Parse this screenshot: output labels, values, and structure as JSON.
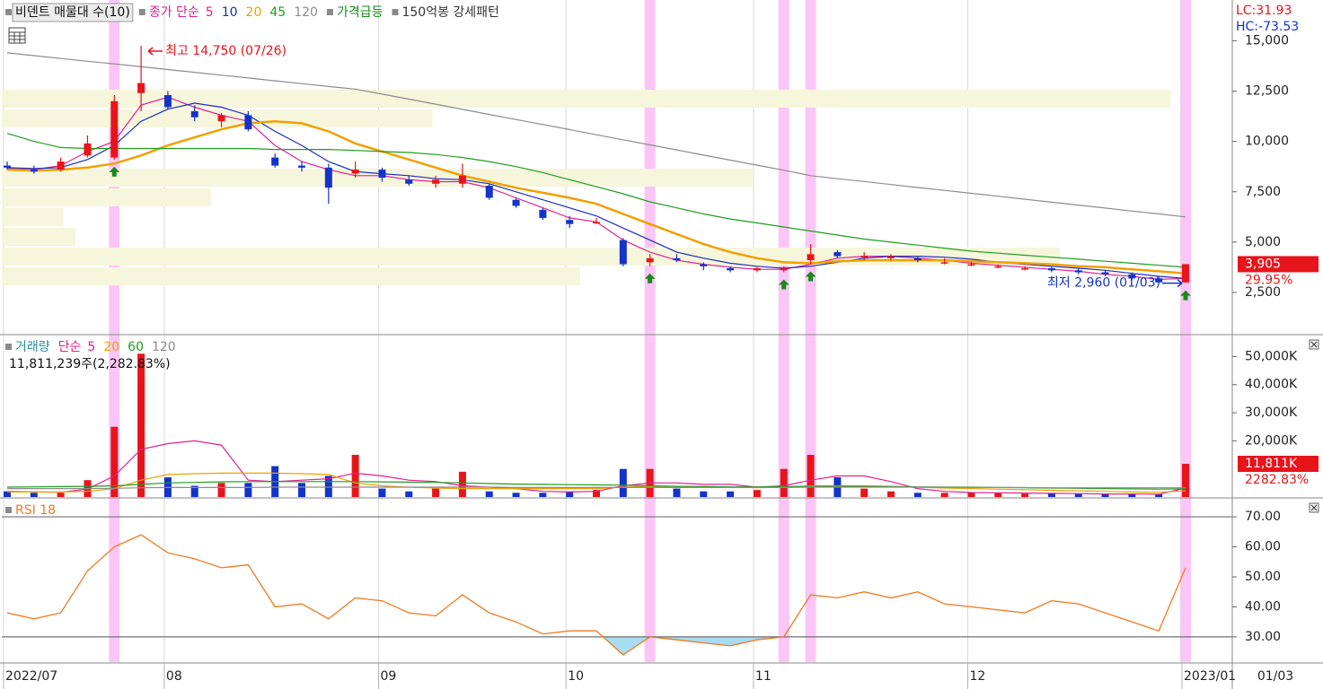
{
  "chart_data": [
    {
      "type": "candlestick",
      "title": "비덴트 매물대 수(10)",
      "ma_label": "종가 단순",
      "categories": [
        "2022/07",
        null,
        null,
        null,
        null,
        null,
        "08",
        null,
        null,
        null,
        null,
        null,
        null,
        null,
        "09",
        null,
        null,
        null,
        null,
        null,
        null,
        "10",
        null,
        null,
        null,
        null,
        null,
        null,
        "11",
        null,
        null,
        null,
        null,
        null,
        null,
        null,
        "12",
        null,
        null,
        null,
        null,
        null,
        null,
        null,
        "2023/01"
      ],
      "open": [
        8800,
        8600,
        8600,
        9300,
        9200,
        12400,
        12300,
        11500,
        11000,
        11300,
        9200,
        8800,
        8700,
        8400,
        8600,
        8100,
        7900,
        7900,
        7800,
        7100,
        6600,
        6100,
        6000,
        5100,
        4000,
        4200,
        3900,
        3700,
        3600,
        3600,
        4100,
        4500,
        4300,
        4200,
        4200,
        4000,
        3900,
        3800,
        3700,
        3700,
        3600,
        3500,
        3400,
        3200,
        3000
      ],
      "high": [
        9000,
        8800,
        9200,
        10300,
        12300,
        14750,
        12500,
        11800,
        11400,
        11500,
        9400,
        9000,
        8900,
        9000,
        8700,
        8300,
        8300,
        8900,
        7900,
        7200,
        6700,
        6300,
        6200,
        5200,
        4400,
        4400,
        4000,
        3800,
        3800,
        3800,
        4900,
        4600,
        4500,
        4400,
        4300,
        4200,
        4000,
        3900,
        3800,
        3800,
        3700,
        3600,
        3500,
        3300,
        3905
      ],
      "low": [
        8600,
        8400,
        8500,
        9200,
        9100,
        11500,
        11600,
        11000,
        10700,
        10500,
        8700,
        8500,
        6900,
        8200,
        8000,
        7800,
        7700,
        7700,
        7100,
        6700,
        6100,
        5700,
        5900,
        3800,
        3800,
        4000,
        3600,
        3500,
        3500,
        3500,
        3900,
        4200,
        4100,
        4100,
        4000,
        3900,
        3800,
        3700,
        3600,
        3500,
        3400,
        3300,
        3100,
        3000,
        2960
      ],
      "close": [
        8700,
        8500,
        9000,
        9900,
        12000,
        12900,
        11700,
        11200,
        11300,
        10600,
        8800,
        8700,
        7700,
        8600,
        8200,
        7900,
        8100,
        8300,
        7200,
        6800,
        6200,
        5900,
        6000,
        3900,
        4200,
        4100,
        3800,
        3600,
        3700,
        3700,
        4400,
        4300,
        4300,
        4300,
        4100,
        4000,
        3900,
        3800,
        3700,
        3600,
        3500,
        3400,
        3200,
        3000,
        3905
      ],
      "up_color": "#e8141b",
      "down_color": "#1433c8",
      "series": [
        {
          "name": "5",
          "color": "#e0208f",
          "values": [
            8650,
            8600,
            8800,
            9500,
            10000,
            11800,
            12200,
            11700,
            11300,
            11000,
            9800,
            9000,
            8600,
            8300,
            8300,
            8100,
            8000,
            8000,
            7700,
            7200,
            6700,
            6200,
            6000,
            5100,
            4500,
            4100,
            3900,
            3750,
            3650,
            3650,
            3900,
            4200,
            4300,
            4300,
            4200,
            4100,
            3950,
            3850,
            3750,
            3650,
            3550,
            3400,
            3300,
            3150,
            3200
          ]
        },
        {
          "name": "10",
          "color": "#1a2dbf",
          "values": [
            8700,
            8650,
            8700,
            9100,
            9800,
            11000,
            11600,
            11900,
            11700,
            11300,
            10500,
            9800,
            9000,
            8500,
            8400,
            8300,
            8150,
            8100,
            7900,
            7500,
            7100,
            6700,
            6300,
            5700,
            5100,
            4500,
            4200,
            3950,
            3800,
            3700,
            3800,
            4000,
            4200,
            4300,
            4300,
            4250,
            4150,
            4000,
            3900,
            3800,
            3700,
            3600,
            3450,
            3300,
            3200
          ]
        },
        {
          "name": "20",
          "color": "#f0a000",
          "values": [
            8600,
            8550,
            8600,
            8700,
            8900,
            9300,
            9800,
            10200,
            10600,
            10900,
            11000,
            10900,
            10500,
            9900,
            9500,
            9100,
            8700,
            8300,
            8000,
            7700,
            7450,
            7200,
            6900,
            6400,
            5900,
            5400,
            4900,
            4500,
            4200,
            4000,
            3950,
            4050,
            4100,
            4100,
            4100,
            4100,
            4050,
            4000,
            3950,
            3900,
            3800,
            3750,
            3650,
            3550,
            3450
          ]
        },
        {
          "name": "45",
          "color": "#1e9e1e",
          "values": [
            10400,
            10000,
            9700,
            9650,
            9650,
            9650,
            9650,
            9650,
            9650,
            9650,
            9600,
            9600,
            9600,
            9550,
            9500,
            9450,
            9350,
            9200,
            9000,
            8750,
            8450,
            8100,
            7750,
            7400,
            7000,
            6700,
            6400,
            6150,
            5950,
            5750,
            5550,
            5350,
            5150,
            5000,
            4850,
            4700,
            4550,
            4450,
            4350,
            4250,
            4150,
            4050,
            3950,
            3850,
            3750
          ]
        },
        {
          "name": "120",
          "color": "#8c8c8c",
          "values": [
            14400,
            14260,
            14120,
            13980,
            13850,
            13710,
            13570,
            13430,
            13290,
            13150,
            13010,
            12870,
            12730,
            12600,
            12350,
            12100,
            11850,
            11590,
            11340,
            11090,
            10840,
            10590,
            10330,
            10080,
            9830,
            9580,
            9320,
            9070,
            8820,
            8570,
            8300,
            8150,
            8010,
            7860,
            7710,
            7570,
            7420,
            7280,
            7130,
            6980,
            6840,
            6690,
            6540,
            6400,
            6250
          ]
        }
      ],
      "signals": [
        {
          "name": "가격급등",
          "color": "#1a8a1a",
          "indices": [
            4,
            24,
            29,
            30,
            44
          ]
        },
        {
          "name": "150억봉 강세패턴",
          "color": "#fbc6f7",
          "indices": [
            4,
            24,
            29,
            30,
            44
          ]
        }
      ],
      "profile": {
        "bins": [
          2810,
          3790,
          4770,
          5750,
          6730,
          7710,
          8690,
          9670,
          10650,
          11630,
          12610
        ],
        "values": [
          47,
          86,
          6,
          5,
          17,
          61,
          0,
          0,
          35,
          95
        ],
        "lim": [
          0,
          100
        ],
        "color": "#f6f6dc"
      },
      "max_label": "최고 14,750 (07/26)",
      "min_label": "최저 2,960 (01/03)",
      "last_value_label": "3,905",
      "change_label": "29.95%",
      "lc_label": "LC:31.93",
      "hc_label": "HC:-73.53",
      "cursor_date": "01/03",
      "ylim": [
        450,
        16800
      ],
      "yticks": [
        {
          "value": 2500,
          "label": "2,500"
        },
        {
          "value": 5000,
          "label": "5,000"
        },
        {
          "value": 7500,
          "label": "7,500"
        },
        {
          "value": 10000,
          "label": "10,000"
        },
        {
          "value": 12500,
          "label": "12,500"
        },
        {
          "value": 15000,
          "label": "15,000"
        }
      ]
    },
    {
      "type": "bar",
      "title": "거래량",
      "title_color": "#2a8fa0",
      "ma_label": "단순",
      "values": [
        2000,
        1500,
        1500,
        6000,
        25000,
        51000,
        7000,
        4000,
        5000,
        5000,
        11000,
        5000,
        7500,
        15000,
        3000,
        2000,
        3000,
        9000,
        2000,
        1500,
        1500,
        2000,
        2500,
        10000,
        10000,
        3000,
        2000,
        2000,
        2500,
        10000,
        15000,
        7000,
        3000,
        2000,
        1500,
        1500,
        1500,
        1500,
        1200,
        1200,
        1200,
        1000,
        1000,
        1000,
        11811
      ],
      "summary": "11,811,239주(2,282.83%)",
      "last_value_label": "11,811K",
      "ratio_label": "2282.83%",
      "series": [
        {
          "name": "5",
          "color": "#e0208f",
          "values": [
            2000,
            1800,
            1700,
            2800,
            7500,
            17000,
            19000,
            20000,
            18500,
            6000,
            5500,
            6000,
            6500,
            8500,
            7500,
            6000,
            5500,
            4000,
            3500,
            3000,
            2000,
            1800,
            2000,
            4000,
            5000,
            5000,
            4500,
            4500,
            3500,
            4000,
            6000,
            7500,
            7500,
            5500,
            3000,
            2000,
            1600,
            1500,
            1400,
            1300,
            1200,
            1100,
            1100,
            1000,
            3200
          ]
        },
        {
          "name": "20",
          "color": "#f0a000",
          "values": [
            1800,
            1800,
            1800,
            2000,
            3000,
            6000,
            8000,
            8300,
            8500,
            8500,
            8500,
            8300,
            8000,
            5000,
            4000,
            3500,
            3200,
            3000,
            3000,
            3000,
            3000,
            3000,
            3000,
            3500,
            3800,
            3800,
            3800,
            3500,
            3300,
            3500,
            4000,
            4000,
            4000,
            3800,
            3500,
            3200,
            3000,
            2800,
            2600,
            2400,
            2200,
            2000,
            1800,
            1700,
            2200
          ]
        },
        {
          "name": "60",
          "color": "#1e9e1e",
          "values": [
            3500,
            3600,
            3700,
            3800,
            4000,
            4500,
            5000,
            5200,
            5400,
            5500,
            5500,
            5500,
            5500,
            5500,
            5400,
            5300,
            5200,
            5000,
            4800,
            4600,
            4500,
            4400,
            4300,
            4200,
            4000,
            3800,
            3700,
            3600,
            3600,
            3700,
            3800,
            3800,
            3800,
            3700,
            3600,
            3500,
            3500,
            3400,
            3300,
            3200,
            3100,
            3000,
            2900,
            2800,
            2900
          ]
        },
        {
          "name": "120",
          "color": "#8c8c8c",
          "values": [
            3000,
            3000,
            3000,
            3000,
            3100,
            3300,
            3400,
            3400,
            3400,
            3400,
            3500,
            3500,
            3500,
            3500,
            3500,
            3500,
            3500,
            3500,
            3500,
            3400,
            3400,
            3400,
            3400,
            3400,
            3400,
            3400,
            3400,
            3400,
            3400,
            3400,
            3500,
            3500,
            3500,
            3500,
            3500,
            3400,
            3400,
            3400,
            3400,
            3300,
            3300,
            3300,
            3300,
            3300,
            3300
          ]
        }
      ],
      "ylim": [
        0,
        56200
      ],
      "yticks": [
        {
          "value": 20000,
          "label": "20,000K"
        },
        {
          "value": 30000,
          "label": "30,000K"
        },
        {
          "value": 40000,
          "label": "40,000K"
        },
        {
          "value": 50000,
          "label": "50,000K"
        }
      ]
    },
    {
      "type": "line",
      "title": "RSI 18",
      "color": "#f07a20",
      "values": [
        38,
        36,
        38,
        52,
        60,
        64,
        58,
        56,
        53,
        54,
        40,
        41,
        36,
        43,
        42,
        38,
        37,
        44,
        38,
        35,
        31,
        32,
        32,
        24,
        30,
        29,
        28,
        27,
        29,
        30,
        44,
        43,
        45,
        43,
        45,
        41,
        40,
        39,
        38,
        42,
        41,
        38,
        35,
        32,
        53
      ],
      "bands": [
        30,
        70
      ],
      "fill_color": "#a8dcf0",
      "ylim": [
        21.6,
        75.4
      ],
      "yticks": [
        {
          "value": 30,
          "label": "30.00"
        },
        {
          "value": 40,
          "label": "40.00"
        },
        {
          "value": 50,
          "label": "50.00"
        },
        {
          "value": 60,
          "label": "60.00"
        },
        {
          "value": 70,
          "label": "70.00"
        }
      ]
    }
  ]
}
